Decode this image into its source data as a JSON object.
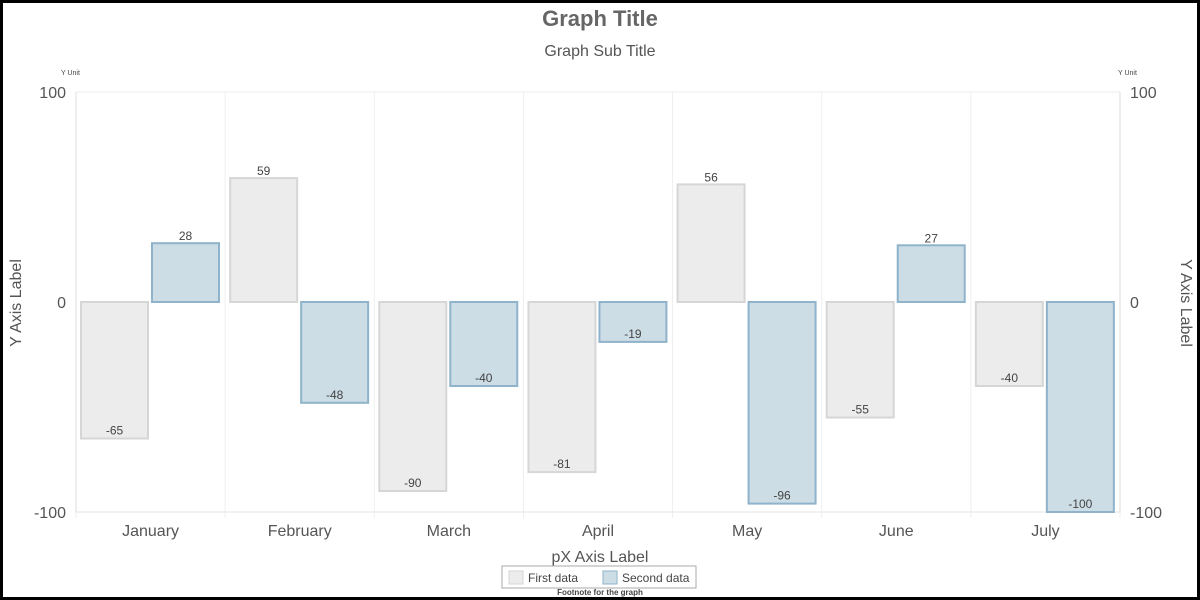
{
  "chart_data": {
    "type": "bar",
    "title": "Graph Title",
    "subtitle": "Graph Sub Title",
    "xlabel": "pX Axis Label",
    "ylabel": "Y Axis Label",
    "ylabel_right": "Y Axis Label",
    "y_unit": "Y Unit",
    "y_unit_right": "Y Unit",
    "footnote": "Footnote for the graph",
    "ylim": [
      -100,
      100
    ],
    "yticks": [
      "100",
      "0",
      "-100"
    ],
    "categories": [
      "January",
      "February",
      "March",
      "April",
      "May",
      "June",
      "July"
    ],
    "series": [
      {
        "name": "First data",
        "values": [
          -65,
          59,
          -90,
          -81,
          56,
          -55,
          -40
        ],
        "fill": "#ececec",
        "stroke": "#d6d6d6"
      },
      {
        "name": "Second data",
        "values": [
          28,
          -48,
          -40,
          -19,
          -96,
          27,
          -100
        ],
        "fill": "#cddde6",
        "stroke": "#8fb3cb"
      }
    ],
    "grid": true,
    "legend_position": "bottom-center"
  }
}
